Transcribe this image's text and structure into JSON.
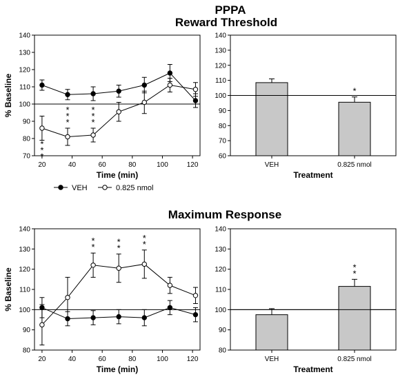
{
  "header": {
    "title": "PPPA",
    "subtitle_top": "Reward Threshold",
    "subtitle_bottom": "Maximum Response"
  },
  "legend": {
    "entries": [
      "VEH",
      "0.825 nmol"
    ],
    "placement": "below-top-left"
  },
  "colors": {
    "bar_fill": "#c8c8c8",
    "veh_marker": "#000000",
    "drug_marker": "#ffffff"
  },
  "chart_data": [
    {
      "id": "threshold-time",
      "type": "line",
      "xlabel": "Time (min)",
      "ylabel": "% Baseline",
      "x": [
        20,
        37,
        54,
        71,
        88,
        105,
        122
      ],
      "xticks": [
        20,
        40,
        60,
        80,
        100,
        120
      ],
      "xlim": [
        15,
        125
      ],
      "ylim": [
        70,
        140
      ],
      "yticks": [
        70,
        80,
        90,
        100,
        110,
        120,
        130,
        140
      ],
      "reference_line": 100,
      "series": [
        {
          "name": "VEH",
          "marker": "filled",
          "values": [
            111,
            105.5,
            106,
            107.5,
            111,
            118,
            102
          ],
          "errors": [
            3,
            3,
            4,
            3.5,
            4.5,
            5,
            4
          ]
        },
        {
          "name": "0.825 nmol",
          "marker": "open",
          "values": [
            86,
            81,
            82,
            95.5,
            101,
            111,
            108.5
          ],
          "errors": [
            7,
            5,
            4,
            5.5,
            6.5,
            4,
            4
          ]
        }
      ],
      "annotations": [
        {
          "x": 20,
          "label": "***",
          "position": "below"
        },
        {
          "x": 37,
          "label": "***",
          "position": "above"
        },
        {
          "x": 54,
          "label": "***",
          "position": "above"
        }
      ]
    },
    {
      "id": "threshold-bar",
      "type": "bar",
      "xlabel": "Treatment",
      "categories": [
        "VEH",
        "0.825 nmol"
      ],
      "values": [
        108.5,
        95.5
      ],
      "errors": [
        2.5,
        3.5
      ],
      "ylim": [
        60,
        140
      ],
      "yticks": [
        60,
        70,
        80,
        90,
        100,
        110,
        120,
        130,
        140
      ],
      "reference_line": 100,
      "annotations": [
        {
          "category": "0.825 nmol",
          "label": "*"
        }
      ]
    },
    {
      "id": "maxresp-time",
      "type": "line",
      "xlabel": "Time (min)",
      "ylabel": "% Baseline",
      "x": [
        20,
        37,
        54,
        71,
        88,
        105,
        122
      ],
      "xticks": [
        20,
        40,
        60,
        80,
        100,
        120
      ],
      "xlim": [
        15,
        125
      ],
      "ylim": [
        80,
        140
      ],
      "yticks": [
        80,
        90,
        100,
        110,
        120,
        130,
        140
      ],
      "reference_line": 100,
      "series": [
        {
          "name": "VEH",
          "marker": "filled",
          "values": [
            101,
            95.5,
            96,
            96.5,
            96,
            101,
            97.5
          ],
          "errors": [
            5,
            3.5,
            3.5,
            3.5,
            4,
            3.5,
            3.5
          ]
        },
        {
          "name": "0.825 nmol",
          "marker": "open",
          "values": [
            92.5,
            106,
            122,
            120.5,
            122.5,
            112,
            107
          ],
          "errors": [
            10,
            10,
            6,
            7,
            7,
            4,
            4
          ]
        }
      ],
      "annotations": [
        {
          "x": 54,
          "label": "**",
          "position": "above"
        },
        {
          "x": 71,
          "label": "**",
          "position": "above"
        },
        {
          "x": 88,
          "label": "**",
          "position": "above"
        }
      ]
    },
    {
      "id": "maxresp-bar",
      "type": "bar",
      "xlabel": "Treatment",
      "categories": [
        "VEH",
        "0.825 nmol"
      ],
      "values": [
        97.5,
        111.5
      ],
      "errors": [
        3,
        3.5
      ],
      "ylim": [
        80,
        140
      ],
      "yticks": [
        80,
        90,
        100,
        110,
        120,
        130,
        140
      ],
      "reference_line": 100,
      "annotations": [
        {
          "category": "0.825 nmol",
          "label": "**"
        }
      ]
    }
  ]
}
